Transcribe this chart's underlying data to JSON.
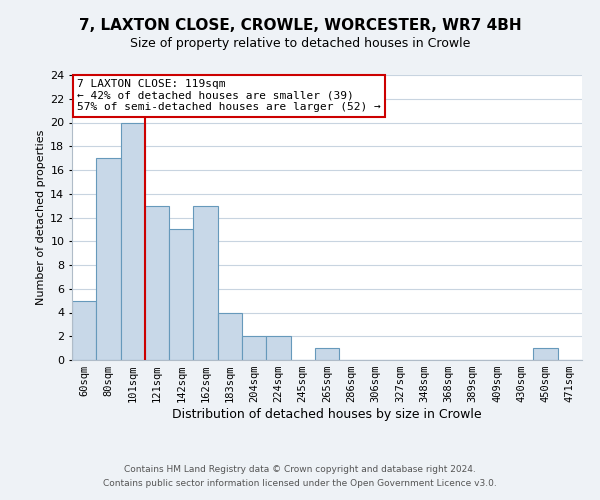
{
  "title": "7, LAXTON CLOSE, CROWLE, WORCESTER, WR7 4BH",
  "subtitle": "Size of property relative to detached houses in Crowle",
  "xlabel": "Distribution of detached houses by size in Crowle",
  "ylabel": "Number of detached properties",
  "bin_labels": [
    "60sqm",
    "80sqm",
    "101sqm",
    "121sqm",
    "142sqm",
    "162sqm",
    "183sqm",
    "204sqm",
    "224sqm",
    "245sqm",
    "265sqm",
    "286sqm",
    "306sqm",
    "327sqm",
    "348sqm",
    "368sqm",
    "389sqm",
    "409sqm",
    "430sqm",
    "450sqm",
    "471sqm"
  ],
  "bar_heights": [
    5,
    17,
    20,
    13,
    11,
    13,
    4,
    2,
    2,
    0,
    1,
    0,
    0,
    0,
    0,
    0,
    0,
    0,
    0,
    1,
    0
  ],
  "bar_color": "#c8d8e8",
  "bar_edge_color": "#6699bb",
  "marker_line_color": "#cc0000",
  "ylim": [
    0,
    24
  ],
  "yticks": [
    0,
    2,
    4,
    6,
    8,
    10,
    12,
    14,
    16,
    18,
    20,
    22,
    24
  ],
  "annotation_title": "7 LAXTON CLOSE: 119sqm",
  "annotation_line1": "← 42% of detached houses are smaller (39)",
  "annotation_line2": "57% of semi-detached houses are larger (52) →",
  "annotation_box_color": "#ffffff",
  "annotation_box_edge": "#cc0000",
  "footer_line1": "Contains HM Land Registry data © Crown copyright and database right 2024.",
  "footer_line2": "Contains public sector information licensed under the Open Government Licence v3.0.",
  "background_color": "#eef2f6",
  "plot_bg_color": "#ffffff",
  "grid_color": "#c8d4e0",
  "title_fontsize": 11,
  "subtitle_fontsize": 9,
  "xlabel_fontsize": 9,
  "ylabel_fontsize": 8,
  "tick_fontsize": 7.5,
  "footer_fontsize": 6.5,
  "ann_fontsize": 8.0
}
